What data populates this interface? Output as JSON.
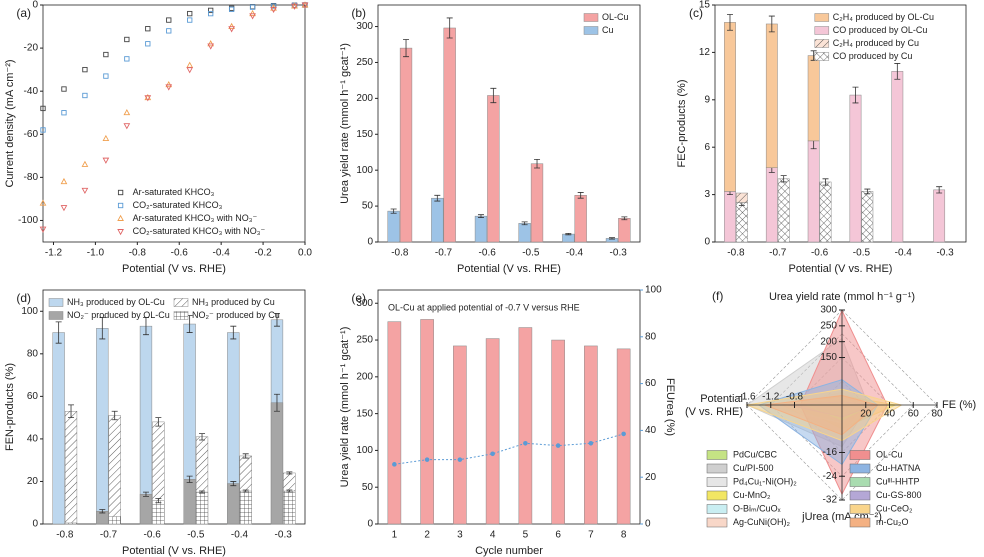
{
  "chart_data": [
    {
      "type": "scatter",
      "label": "(a)",
      "xlabel": "Potential (V vs. RHE)",
      "ylabel": "Current density (mA cm⁻²)",
      "xlim": [
        -1.25,
        0
      ],
      "ylim": [
        -110,
        0
      ],
      "xticks": [
        -1.2,
        {
          "value": -1,
          "label": "-1.0"
        },
        -0.8,
        -0.6,
        -0.4,
        -0.2,
        {
          "value": 0,
          "label": "0.0"
        }
      ],
      "yticks": [
        -100,
        -80,
        -60,
        -40,
        -20,
        0
      ],
      "legend": "lower right",
      "series": [
        {
          "name": "Ar-saturated KHCO₃",
          "color": "#444444",
          "marker": "square",
          "x": [
            -1.25,
            -1.15,
            -1.05,
            -0.95,
            -0.85,
            -0.75,
            -0.65,
            -0.55,
            -0.45,
            -0.35,
            -0.25,
            -0.15,
            -0.05,
            0
          ],
          "values": [
            -48,
            -39,
            -30,
            -23,
            -16,
            -11,
            -7,
            -4,
            -2.5,
            -1.5,
            -0.8,
            -0.3,
            -0.1,
            0
          ]
        },
        {
          "name": "CO₂-saturated KHCO₃",
          "color": "#5b9bd5",
          "marker": "square",
          "x": [
            -1.25,
            -1.15,
            -1.05,
            -0.95,
            -0.85,
            -0.75,
            -0.65,
            -0.55,
            -0.45,
            -0.35,
            -0.25,
            -0.15,
            -0.05,
            0
          ],
          "values": [
            -58,
            -50,
            -42,
            -33,
            -25,
            -18,
            -12,
            -7,
            -4,
            -2,
            -1,
            -0.5,
            -0.2,
            0
          ]
        },
        {
          "name": "Ar-saturated KHCO₃ with NO₃⁻",
          "color": "#f0a050",
          "marker": "triangle",
          "x": [
            -1.25,
            -1.15,
            -1.05,
            -0.95,
            -0.85,
            -0.75,
            -0.65,
            -0.55,
            -0.45,
            -0.35,
            -0.25,
            -0.15,
            -0.05,
            0
          ],
          "values": [
            -92,
            -82,
            -74,
            -62,
            -50,
            -43,
            -37,
            -28,
            -18,
            -10,
            -4,
            -1.5,
            -0.5,
            0
          ]
        },
        {
          "name": "CO₂-saturated KHCO₃ with NO₃⁻",
          "color": "#e06666",
          "marker": "triangle-down",
          "x": [
            -1.25,
            -1.15,
            -1.05,
            -0.95,
            -0.85,
            -0.75,
            -0.65,
            -0.55,
            -0.45,
            -0.35,
            -0.25,
            -0.15,
            -0.05,
            0
          ],
          "values": [
            -104,
            -94,
            -86,
            -72,
            -56,
            -43,
            -38,
            -30,
            -19,
            -11,
            -5,
            -2,
            -0.5,
            0
          ]
        }
      ]
    },
    {
      "type": "bar",
      "label": "(b)",
      "xlabel": "Potential (V vs. RHE)",
      "ylabel": "Urea yield rate (mmol h⁻¹ gcat⁻¹)",
      "categories": [
        "-0.8",
        "-0.7",
        "-0.6",
        "-0.5",
        "-0.4",
        "-0.3"
      ],
      "ylim": [
        0,
        330
      ],
      "yticks": [
        0,
        50,
        100,
        150,
        200,
        250,
        300
      ],
      "legend": "upper right",
      "series": [
        {
          "name": "OL-Cu",
          "color": "#f4a3a3",
          "group": 1,
          "values": [
            270,
            298,
            204,
            109,
            65,
            33
          ],
          "errors": [
            12,
            14,
            10,
            6,
            4,
            2
          ]
        },
        {
          "name": "Cu",
          "color": "#9dc3e6",
          "group": 0,
          "values": [
            43,
            61,
            36,
            26,
            11,
            5
          ],
          "errors": [
            3,
            4,
            2,
            2,
            1,
            1
          ]
        }
      ]
    },
    {
      "type": "bar",
      "stacked": true,
      "label": "(c)",
      "xlabel": "Potential (V vs. RHE)",
      "ylabel": "FEC-products (%)",
      "categories": [
        "-0.8",
        "-0.7",
        "-0.6",
        "-0.5",
        "-0.4",
        "-0.3"
      ],
      "ylim": [
        0,
        15
      ],
      "yticks": [
        0,
        3,
        6,
        9,
        12,
        15
      ],
      "legend": "upper right",
      "series": [
        {
          "name": "C₂H₄ produced by OL-Cu",
          "color": "#f8c89a",
          "group": 0,
          "values": [
            10.7,
            9.1,
            5.4,
            null,
            null,
            null
          ],
          "errors": [
            0.5,
            0.5,
            0.3,
            null,
            null,
            null
          ]
        },
        {
          "name": "CO produced by OL-Cu",
          "color": "#f4c6d7",
          "group": 0,
          "values": [
            3.2,
            4.7,
            6.4,
            9.3,
            10.8,
            3.3
          ],
          "errors": [
            0.2,
            0.3,
            0.5,
            0.5,
            0.5,
            0.2
          ]
        },
        {
          "name": "C₂H₄ produced by Cu",
          "color": "#fbe3d6",
          "pattern": "diag",
          "group": 1,
          "values": [
            0.6,
            null,
            null,
            null,
            null,
            null
          ]
        },
        {
          "name": "CO produced by Cu",
          "color": "#ffffff",
          "pattern": "cross",
          "group": 1,
          "values": [
            2.5,
            4.0,
            3.8,
            3.2,
            null,
            null
          ],
          "errors": [
            0.2,
            0.2,
            0.2,
            0.15,
            null,
            null
          ]
        }
      ]
    },
    {
      "type": "bar",
      "label": "(d)",
      "xlabel": "Potential (V vs. RHE)",
      "ylabel": "FEN-products (%)",
      "categories": [
        "-0.8",
        "-0.7",
        "-0.6",
        "-0.5",
        "-0.4",
        "-0.3"
      ],
      "ylim": [
        0,
        110
      ],
      "yticks": [
        0,
        20,
        40,
        60,
        80,
        100
      ],
      "legend": "upper center",
      "legend_columns": 2,
      "series": [
        {
          "name": "NH₃ produced by OL-Cu",
          "color": "#bdd7ee",
          "group": 0,
          "values": [
            90,
            92,
            93,
            94,
            90,
            96
          ],
          "errors": [
            5,
            5,
            4,
            4,
            3,
            3
          ]
        },
        {
          "name": "NO₂⁻ produced by OL-Cu",
          "color": "#a6a6a6",
          "group": 0,
          "values": [
            null,
            6,
            14,
            21,
            19,
            57
          ],
          "errors": [
            null,
            0.8,
            1,
            1.5,
            1,
            4
          ]
        },
        {
          "name": "NH₃ produced by Cu",
          "color": "#ffffff",
          "pattern": "diag",
          "group": 1,
          "values": [
            53,
            51,
            48,
            41,
            32,
            24
          ],
          "errors": [
            3,
            2,
            2,
            1.5,
            1,
            0.5
          ]
        },
        {
          "name": "NO₂⁻ produced by Cu",
          "color": "#ffffff",
          "pattern": "grid",
          "group": 1,
          "values": [
            0.5,
            3.5,
            11,
            15,
            15.5,
            15.5
          ],
          "errors": [
            null,
            null,
            1,
            0.5,
            0.5,
            0.5
          ]
        }
      ]
    },
    {
      "type": "bar",
      "label": "(e)",
      "xlabel": "Cycle number",
      "ylabel": "Urea yield rate (mmol h⁻¹ gcat⁻¹)",
      "y2label": "FEUrea (%)",
      "annotation": "OL-Cu at applied potential of -0.7 V versus RHE",
      "categories": [
        "1",
        "2",
        "3",
        "4",
        "5",
        "6",
        "7",
        "8"
      ],
      "ylim": [
        0,
        318
      ],
      "yticks": [
        0,
        50,
        100,
        150,
        200,
        250,
        300
      ],
      "y2lim": [
        0,
        100
      ],
      "y2ticks": [
        0,
        20,
        40,
        60,
        80,
        100
      ],
      "y2color": "#5b9bd5",
      "series": [
        {
          "color": "#f4a3a3",
          "values": [
            275,
            278,
            242,
            252,
            267,
            250,
            242,
            238
          ]
        },
        {
          "type": "line",
          "axis": "y2",
          "color": "#5b9bd5",
          "values": [
            25.5,
            27.5,
            27.5,
            30,
            34.5,
            33.5,
            34.5,
            38.5
          ]
        }
      ]
    },
    {
      "type": "radar",
      "label": "(f)",
      "legend_columns": 2,
      "axes": [
        {
          "title": "Urea yield rate (mmol h⁻¹ g⁻¹)",
          "lim": [
            0,
            300
          ],
          "ticks": [
            150,
            200,
            250,
            300
          ]
        },
        {
          "title": "FE (%)",
          "lim": [
            0,
            80
          ],
          "ticks": [
            20,
            40,
            60,
            80
          ]
        },
        {
          "title": "jUrea (mA cm⁻²)",
          "lim": [
            0,
            -32
          ],
          "ticks": [
            -16,
            -24,
            -32
          ]
        },
        {
          "title": [
            "Potential",
            "(V vs. RHE)"
          ],
          "lim": [
            0,
            -1.6
          ],
          "ticks": [
            -0.8,
            -1.2,
            -1.6
          ]
        }
      ],
      "series": [
        {
          "name": "PdCu/CBC",
          "color": "#c5e384",
          "values": [
            12,
            9,
            -6,
            -0.5
          ]
        },
        {
          "name": "Cu/PI-500",
          "color": "#cfcfcf",
          "values": [
            210,
            22,
            -14,
            -1.6
          ]
        },
        {
          "name": "Pd₄Cu₁-Ni(OH)₂",
          "color": "#e6e6e6",
          "values": [
            8,
            6,
            -4,
            -1.0
          ]
        },
        {
          "name": "Cu-MnO₂",
          "color": "#f2e663",
          "values": [
            30,
            45,
            -8,
            -0.8
          ]
        },
        {
          "name": "O-Biₘ/CuOₓ",
          "color": "#c9eef2",
          "values": [
            20,
            15,
            -6,
            -1.3
          ]
        },
        {
          "name": "Ag-CuNi(OH)₂",
          "color": "#f8d7c8",
          "values": [
            40,
            20,
            -10,
            -1.0
          ]
        },
        {
          "name": "OL-Cu",
          "color": "#f08f8f",
          "values": [
            298,
            38,
            -30,
            -0.7
          ]
        },
        {
          "name": "Cu-HATNA",
          "color": "#8db4e2",
          "values": [
            80,
            30,
            -20,
            -1.4
          ]
        },
        {
          "name": "Cuᴵᴵᴵ-HHTP",
          "color": "#a9dcb0",
          "values": [
            10,
            25,
            -5,
            -0.6
          ]
        },
        {
          "name": "Cu-GS-800",
          "color": "#b4a7d6",
          "values": [
            10,
            28,
            -4,
            -0.9
          ]
        },
        {
          "name": "Cu-CeO₂",
          "color": "#f9d58b",
          "values": [
            50,
            50,
            -12,
            -1.6
          ]
        },
        {
          "name": "m-Cu₂O",
          "color": "#f4b183",
          "values": [
            30,
            30,
            -10,
            -1.3
          ]
        }
      ]
    }
  ]
}
